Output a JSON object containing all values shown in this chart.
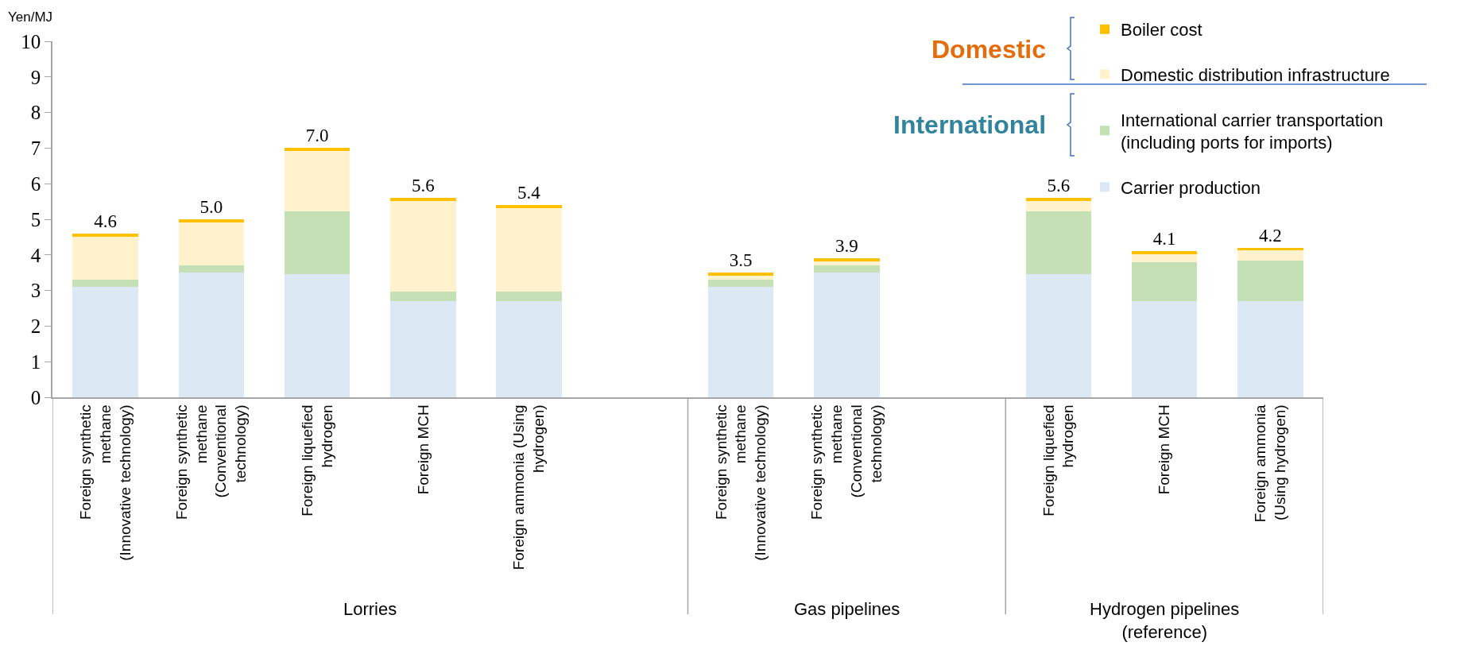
{
  "chart_data": {
    "type": "bar",
    "stacked": true,
    "ylabel": "Yen/MJ",
    "categories": [
      "Foreign synthetic\nmethane\n(Innovative technology)",
      "Foreign synthetic\nmethane\n(Conventional\ntechnology)",
      "Foreign liquefied\nhydrogen",
      "Foreign MCH",
      "Foreign ammonia (Using\nhydrogen)",
      null,
      "Foreign synthetic\nmethane\n(Innovative technology)",
      "Foreign synthetic\nmethane\n(Conventional\ntechnology)",
      null,
      "Foreign liquefied\nhydrogen",
      "Foreign MCH",
      "Foreign ammonia\n(Using hydrogen)"
    ],
    "series": [
      {
        "name": "Carrier production",
        "color": "#dce9f5",
        "values": [
          3.1,
          3.5,
          3.45,
          2.7,
          2.7,
          null,
          3.1,
          3.5,
          null,
          3.45,
          2.7,
          2.7
        ]
      },
      {
        "name": "International carrier transportation\n(including ports for imports)",
        "color": "#c5e0b4",
        "values": [
          0.2,
          0.2,
          1.78,
          0.26,
          0.26,
          null,
          0.2,
          0.2,
          null,
          1.78,
          1.1,
          1.14
        ]
      },
      {
        "name": "Domestic distribution infrastructure",
        "color": "#fff2cc",
        "values": [
          1.22,
          1.22,
          1.69,
          2.56,
          2.36,
          null,
          0.12,
          0.12,
          null,
          0.29,
          0.22,
          0.28
        ]
      },
      {
        "name": "Boiler cost",
        "color": "#ffc000",
        "values": [
          0.08,
          0.08,
          0.08,
          0.08,
          0.08,
          null,
          0.08,
          0.08,
          null,
          0.08,
          0.08,
          0.08
        ]
      }
    ],
    "totals": [
      "4.6",
      "5.0",
      "7.0",
      "5.6",
      "5.4",
      null,
      "3.5",
      "3.9",
      null,
      "5.6",
      "4.1",
      "4.2"
    ],
    "ylim": [
      0,
      10
    ],
    "yticks": [
      0,
      1,
      2,
      3,
      4,
      5,
      6,
      7,
      8,
      9,
      10
    ],
    "grid": false,
    "legend": "top right",
    "annotations": [
      "Domestic",
      "International",
      "Lorries",
      "Gas pipelines",
      "Hydrogen pipelines\n(reference)"
    ]
  }
}
